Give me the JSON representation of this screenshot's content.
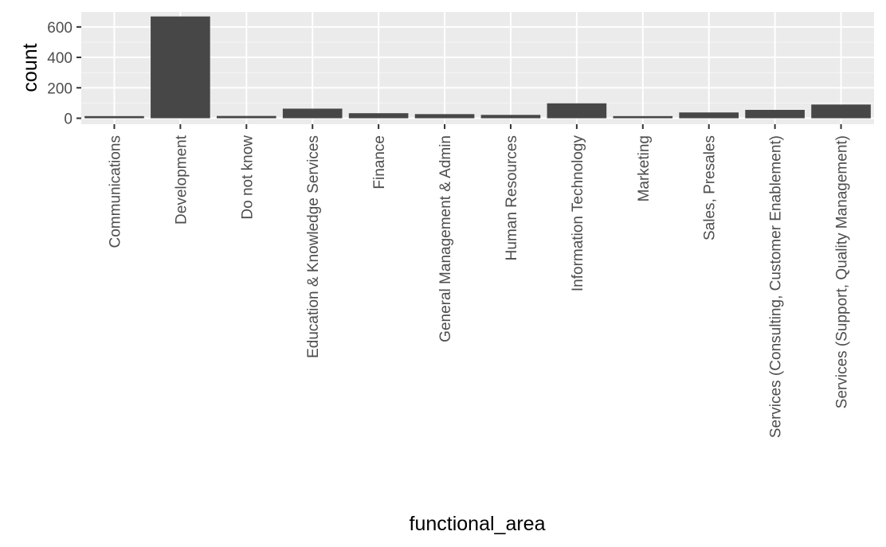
{
  "chart_data": {
    "type": "bar",
    "xlabel": "functional_area",
    "ylabel": "count",
    "categories": [
      "Communications",
      "Development",
      "Do not know",
      "Education & Knowledge Services",
      "Finance",
      "General Management & Admin",
      "Human Resources",
      "Information Technology",
      "Marketing",
      "Sales, Presales",
      "Services (Consulting, Customer Enablement)",
      "Services (Support, Quality Management)"
    ],
    "values": [
      14,
      669,
      15,
      63,
      33,
      27,
      22,
      98,
      14,
      38,
      55,
      90
    ],
    "ylim": [
      0,
      690
    ],
    "yticks": [
      0,
      200,
      400,
      600
    ],
    "ytick_labels": [
      "0",
      "200",
      "400",
      "600"
    ],
    "grid": true,
    "colors": {
      "bar": "#474747",
      "panel": "#ebebeb",
      "grid_major": "#ffffff",
      "grid_minor": "#f5f5f5",
      "tick_text": "#4d4d4d",
      "axis_title": "#000000"
    }
  }
}
